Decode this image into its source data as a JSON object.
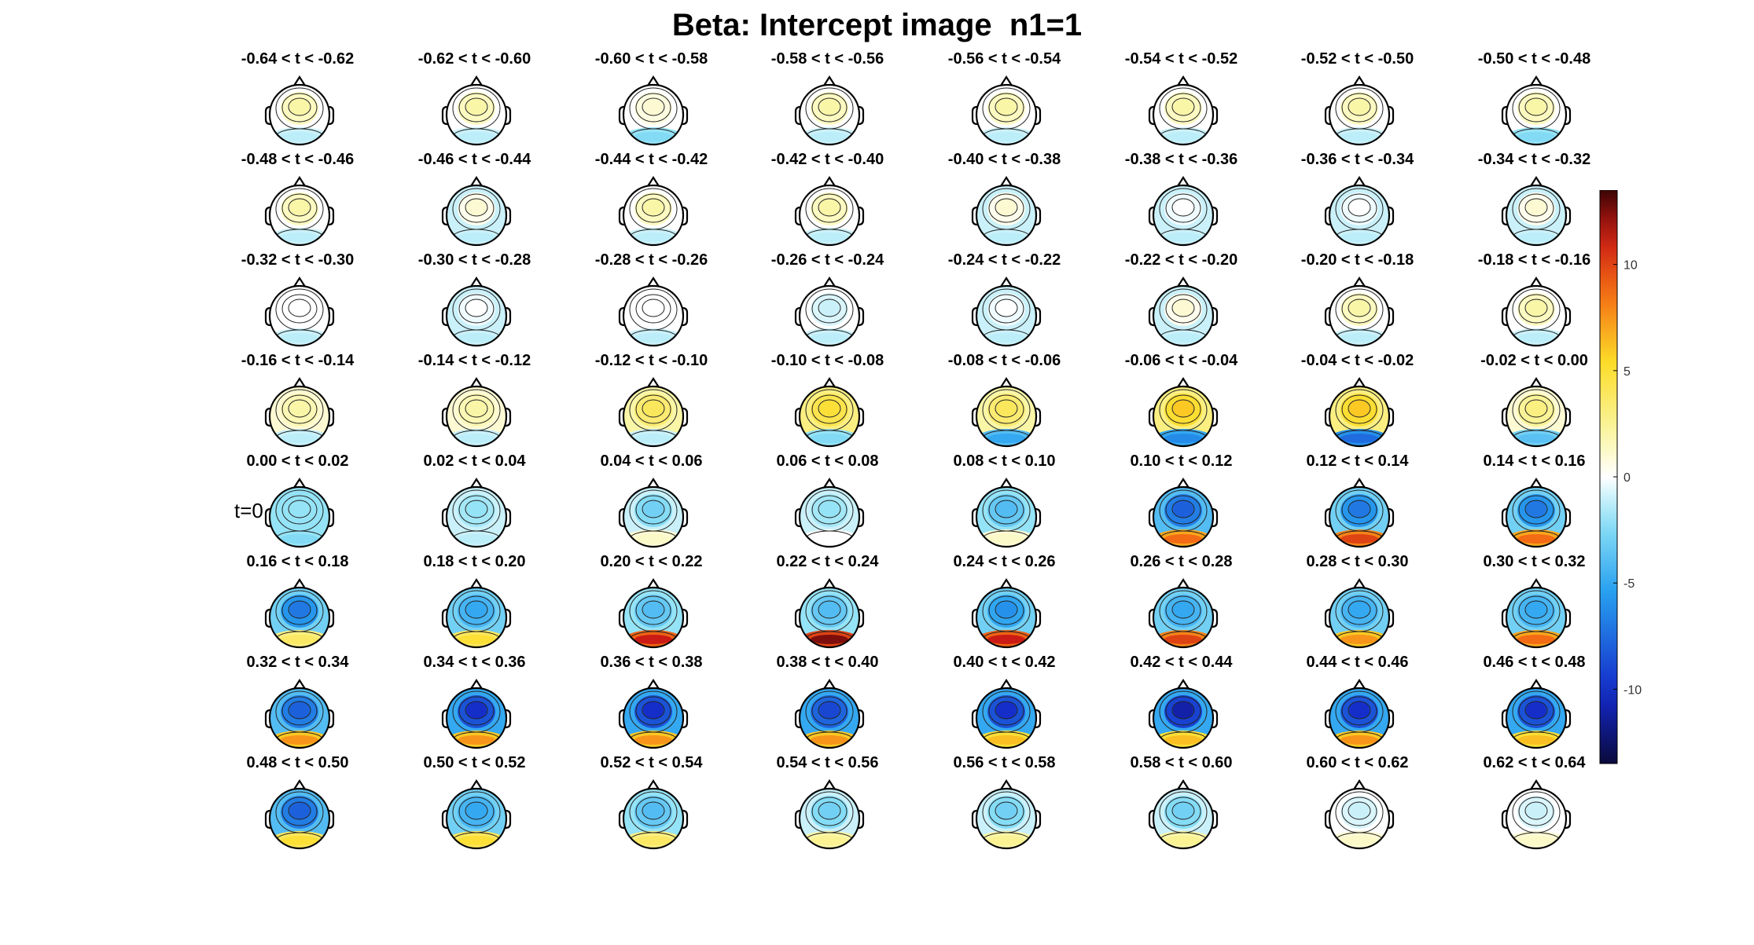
{
  "title": "Beta: Intercept image  n1=1",
  "t0_marker": "t=0",
  "colorbar": {
    "ticks": [
      {
        "value": 10,
        "label": "10"
      },
      {
        "value": 5,
        "label": "5"
      },
      {
        "value": 0,
        "label": "0"
      },
      {
        "value": -5,
        "label": "-5"
      },
      {
        "value": -10,
        "label": "-10"
      }
    ],
    "clim": [
      -13.5,
      13.5
    ],
    "colormap": "jet-like"
  },
  "chart_data": {
    "type": "heatmap",
    "title": "Beta: Intercept image  n1=1",
    "description_source": "topographic scalp maps, 8 columns x 8 rows",
    "panels": [
      {
        "label": "-0.64 < t < -0.62",
        "frontal": 2,
        "central": 0,
        "posterior": -1
      },
      {
        "label": "-0.62 < t < -0.60",
        "frontal": 2,
        "central": 0,
        "posterior": -1
      },
      {
        "label": "-0.60 < t < -0.58",
        "frontal": 1,
        "central": 0,
        "posterior": -2
      },
      {
        "label": "-0.58 < t < -0.56",
        "frontal": 2,
        "central": 0,
        "posterior": -1
      },
      {
        "label": "-0.56 < t < -0.54",
        "frontal": 2,
        "central": 0,
        "posterior": -1
      },
      {
        "label": "-0.54 < t < -0.52",
        "frontal": 2,
        "central": 0,
        "posterior": -1
      },
      {
        "label": "-0.52 < t < -0.50",
        "frontal": 2,
        "central": 0,
        "posterior": -1
      },
      {
        "label": "-0.50 < t < -0.48",
        "frontal": 2,
        "central": 0,
        "posterior": -2
      },
      {
        "label": "-0.48 < t < -0.46",
        "frontal": 2,
        "central": 0,
        "posterior": -1
      },
      {
        "label": "-0.46 < t < -0.44",
        "frontal": 1,
        "central": -1,
        "posterior": -1
      },
      {
        "label": "-0.44 < t < -0.42",
        "frontal": 2,
        "central": 0,
        "posterior": -1
      },
      {
        "label": "-0.42 < t < -0.40",
        "frontal": 2,
        "central": 0,
        "posterior": -1
      },
      {
        "label": "-0.40 < t < -0.38",
        "frontal": 1,
        "central": -1,
        "posterior": -1
      },
      {
        "label": "-0.38 < t < -0.36",
        "frontal": 0,
        "central": -1,
        "posterior": -1
      },
      {
        "label": "-0.36 < t < -0.34",
        "frontal": 0,
        "central": -1,
        "posterior": -1
      },
      {
        "label": "-0.34 < t < -0.32",
        "frontal": 1,
        "central": -1,
        "posterior": -1
      },
      {
        "label": "-0.32 < t < -0.30",
        "frontal": 0,
        "central": 0,
        "posterior": -1
      },
      {
        "label": "-0.30 < t < -0.28",
        "frontal": 0,
        "central": -1,
        "posterior": -1
      },
      {
        "label": "-0.28 < t < -0.26",
        "frontal": 0,
        "central": 0,
        "posterior": -1
      },
      {
        "label": "-0.26 < t < -0.24",
        "frontal": -1,
        "central": 0,
        "posterior": -1
      },
      {
        "label": "-0.24 < t < -0.22",
        "frontal": 0,
        "central": -1,
        "posterior": -1
      },
      {
        "label": "-0.22 < t < -0.20",
        "frontal": 1,
        "central": -1,
        "posterior": -1
      },
      {
        "label": "-0.20 < t < -0.18",
        "frontal": 2,
        "central": 0,
        "posterior": -1
      },
      {
        "label": "-0.18 < t < -0.16",
        "frontal": 2,
        "central": 0,
        "posterior": -1
      },
      {
        "label": "-0.16 < t < -0.14",
        "frontal": 2,
        "central": 1,
        "posterior": -1
      },
      {
        "label": "-0.14 < t < -0.12",
        "frontal": 2,
        "central": 1,
        "posterior": -1
      },
      {
        "label": "-0.12 < t < -0.10",
        "frontal": 4,
        "central": 2,
        "posterior": -1
      },
      {
        "label": "-0.10 < t < -0.08",
        "frontal": 5,
        "central": 3,
        "posterior": -2
      },
      {
        "label": "-0.08 < t < -0.06",
        "frontal": 4,
        "central": 2,
        "posterior": -4
      },
      {
        "label": "-0.06 < t < -0.04",
        "frontal": 6,
        "central": 3,
        "posterior": -5
      },
      {
        "label": "-0.04 < t < -0.02",
        "frontal": 6,
        "central": 3,
        "posterior": -6
      },
      {
        "label": "-0.02 < t < 0.00",
        "frontal": 3,
        "central": 1,
        "posterior": -3
      },
      {
        "label": "0.00 < t < 0.02",
        "frontal": -2,
        "central": -2,
        "posterior": -2
      },
      {
        "label": "0.02 < t < 0.04",
        "frontal": -2,
        "central": -1,
        "posterior": -1
      },
      {
        "label": "0.04 < t < 0.06",
        "frontal": -3,
        "central": -1,
        "posterior": 1
      },
      {
        "label": "0.06 < t < 0.08",
        "frontal": -2,
        "central": -1,
        "posterior": 0
      },
      {
        "label": "0.08 < t < 0.10",
        "frontal": -4,
        "central": -2,
        "posterior": 1
      },
      {
        "label": "0.10 < t < 0.12",
        "frontal": -8,
        "central": -4,
        "posterior": 7
      },
      {
        "label": "0.12 < t < 0.14",
        "frontal": -7,
        "central": -3,
        "posterior": 8
      },
      {
        "label": "0.14 < t < 0.16",
        "frontal": -7,
        "central": -3,
        "posterior": 7
      },
      {
        "label": "0.16 < t < 0.18",
        "frontal": -7,
        "central": -3,
        "posterior": 3
      },
      {
        "label": "0.18 < t < 0.20",
        "frontal": -5,
        "central": -3,
        "posterior": 4
      },
      {
        "label": "0.20 < t < 0.22",
        "frontal": -4,
        "central": -2,
        "posterior": 9
      },
      {
        "label": "0.22 < t < 0.24",
        "frontal": -4,
        "central": -2,
        "posterior": 10
      },
      {
        "label": "0.24 < t < 0.26",
        "frontal": -6,
        "central": -3,
        "posterior": 9
      },
      {
        "label": "0.26 < t < 0.28",
        "frontal": -5,
        "central": -3,
        "posterior": 8
      },
      {
        "label": "0.28 < t < 0.30",
        "frontal": -5,
        "central": -3,
        "posterior": 6
      },
      {
        "label": "0.30 < t < 0.32",
        "frontal": -5,
        "central": -3,
        "posterior": 7
      },
      {
        "label": "0.32 < t < 0.34",
        "frontal": -8,
        "central": -4,
        "posterior": 6
      },
      {
        "label": "0.34 < t < 0.36",
        "frontal": -10,
        "central": -5,
        "posterior": 6
      },
      {
        "label": "0.36 < t < 0.38",
        "frontal": -10,
        "central": -5,
        "posterior": 6
      },
      {
        "label": "0.38 < t < 0.40",
        "frontal": -9,
        "central": -5,
        "posterior": 6
      },
      {
        "label": "0.40 < t < 0.42",
        "frontal": -10,
        "central": -5,
        "posterior": 5
      },
      {
        "label": "0.42 < t < 0.44",
        "frontal": -11,
        "central": -5,
        "posterior": 5
      },
      {
        "label": "0.44 < t < 0.46",
        "frontal": -10,
        "central": -5,
        "posterior": 6
      },
      {
        "label": "0.46 < t < 0.48",
        "frontal": -10,
        "central": -5,
        "posterior": 5
      },
      {
        "label": "0.48 < t < 0.50",
        "frontal": -8,
        "central": -4,
        "posterior": 4
      },
      {
        "label": "0.50 < t < 0.52",
        "frontal": -5,
        "central": -3,
        "posterior": 4
      },
      {
        "label": "0.52 < t < 0.54",
        "frontal": -4,
        "central": -2,
        "posterior": 3
      },
      {
        "label": "0.54 < t < 0.56",
        "frontal": -3,
        "central": -1,
        "posterior": 2
      },
      {
        "label": "0.56 < t < 0.58",
        "frontal": -3,
        "central": -1,
        "posterior": 2
      },
      {
        "label": "0.58 < t < 0.60",
        "frontal": -3,
        "central": -1,
        "posterior": 2
      },
      {
        "label": "0.60 < t < 0.62",
        "frontal": -1,
        "central": 0,
        "posterior": 1
      },
      {
        "label": "0.62 < t < 0.64",
        "frontal": -1,
        "central": 0,
        "posterior": 1
      }
    ]
  }
}
